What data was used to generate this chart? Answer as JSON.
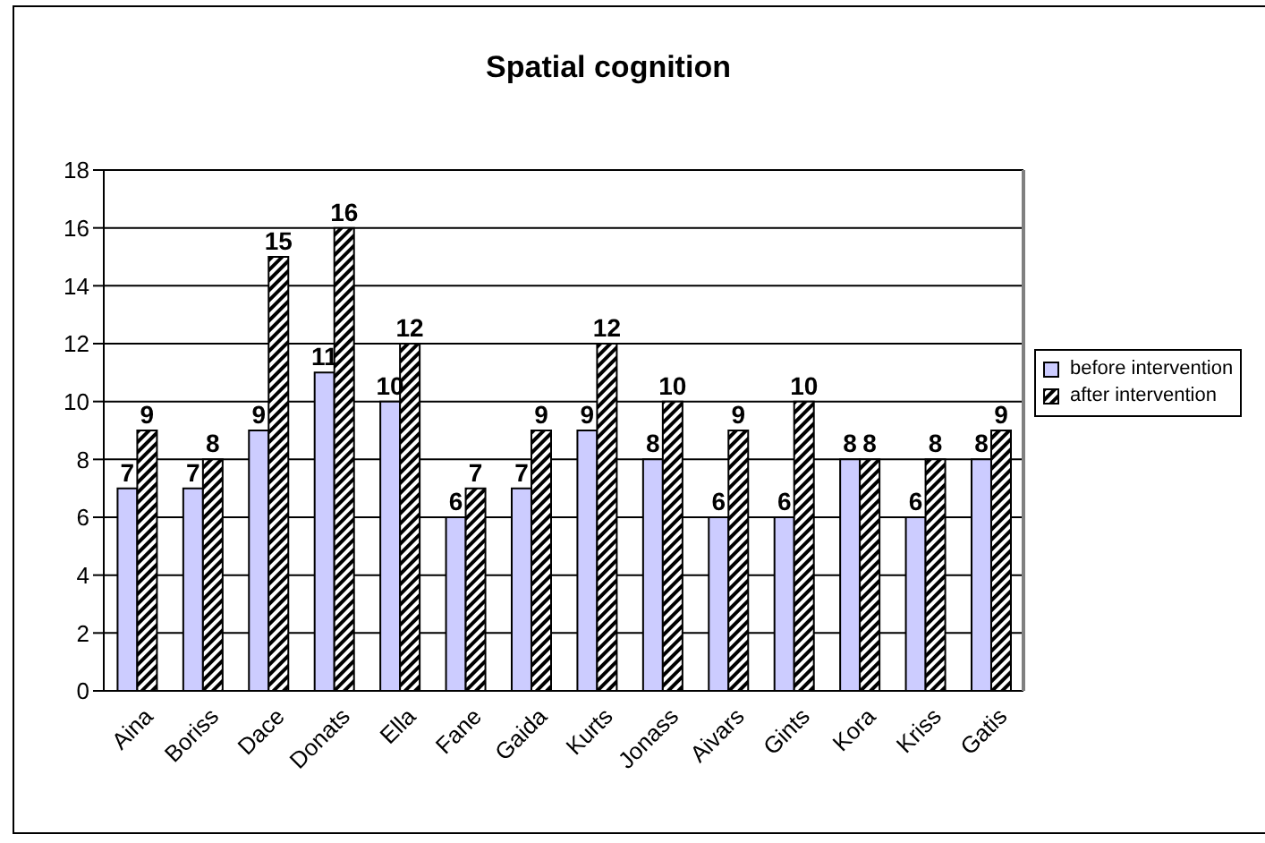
{
  "chart_data": {
    "type": "bar",
    "title": "Spatial cognition",
    "categories": [
      "Aina",
      "Boriss",
      "Dace",
      "Donats",
      "Ella",
      "Fane",
      "Gaida",
      "Kurts",
      "Jonass",
      "Aivars",
      "Gints",
      "Kora",
      "Kriss",
      "Gatis"
    ],
    "series": [
      {
        "name": "before intervention",
        "color": "#ccccff",
        "values": [
          7,
          7,
          9,
          11,
          10,
          6,
          7,
          9,
          8,
          6,
          6,
          8,
          6,
          8
        ]
      },
      {
        "name": "after intervention",
        "color": "#000000",
        "values": [
          9,
          8,
          15,
          16,
          12,
          7,
          9,
          12,
          10,
          9,
          10,
          8,
          8,
          9
        ]
      }
    ],
    "ylim": [
      0,
      18
    ],
    "yticks": [
      0,
      2,
      4,
      6,
      8,
      10,
      12,
      14,
      16,
      18
    ],
    "grid": "y",
    "legend": "right",
    "data_labels": true
  }
}
